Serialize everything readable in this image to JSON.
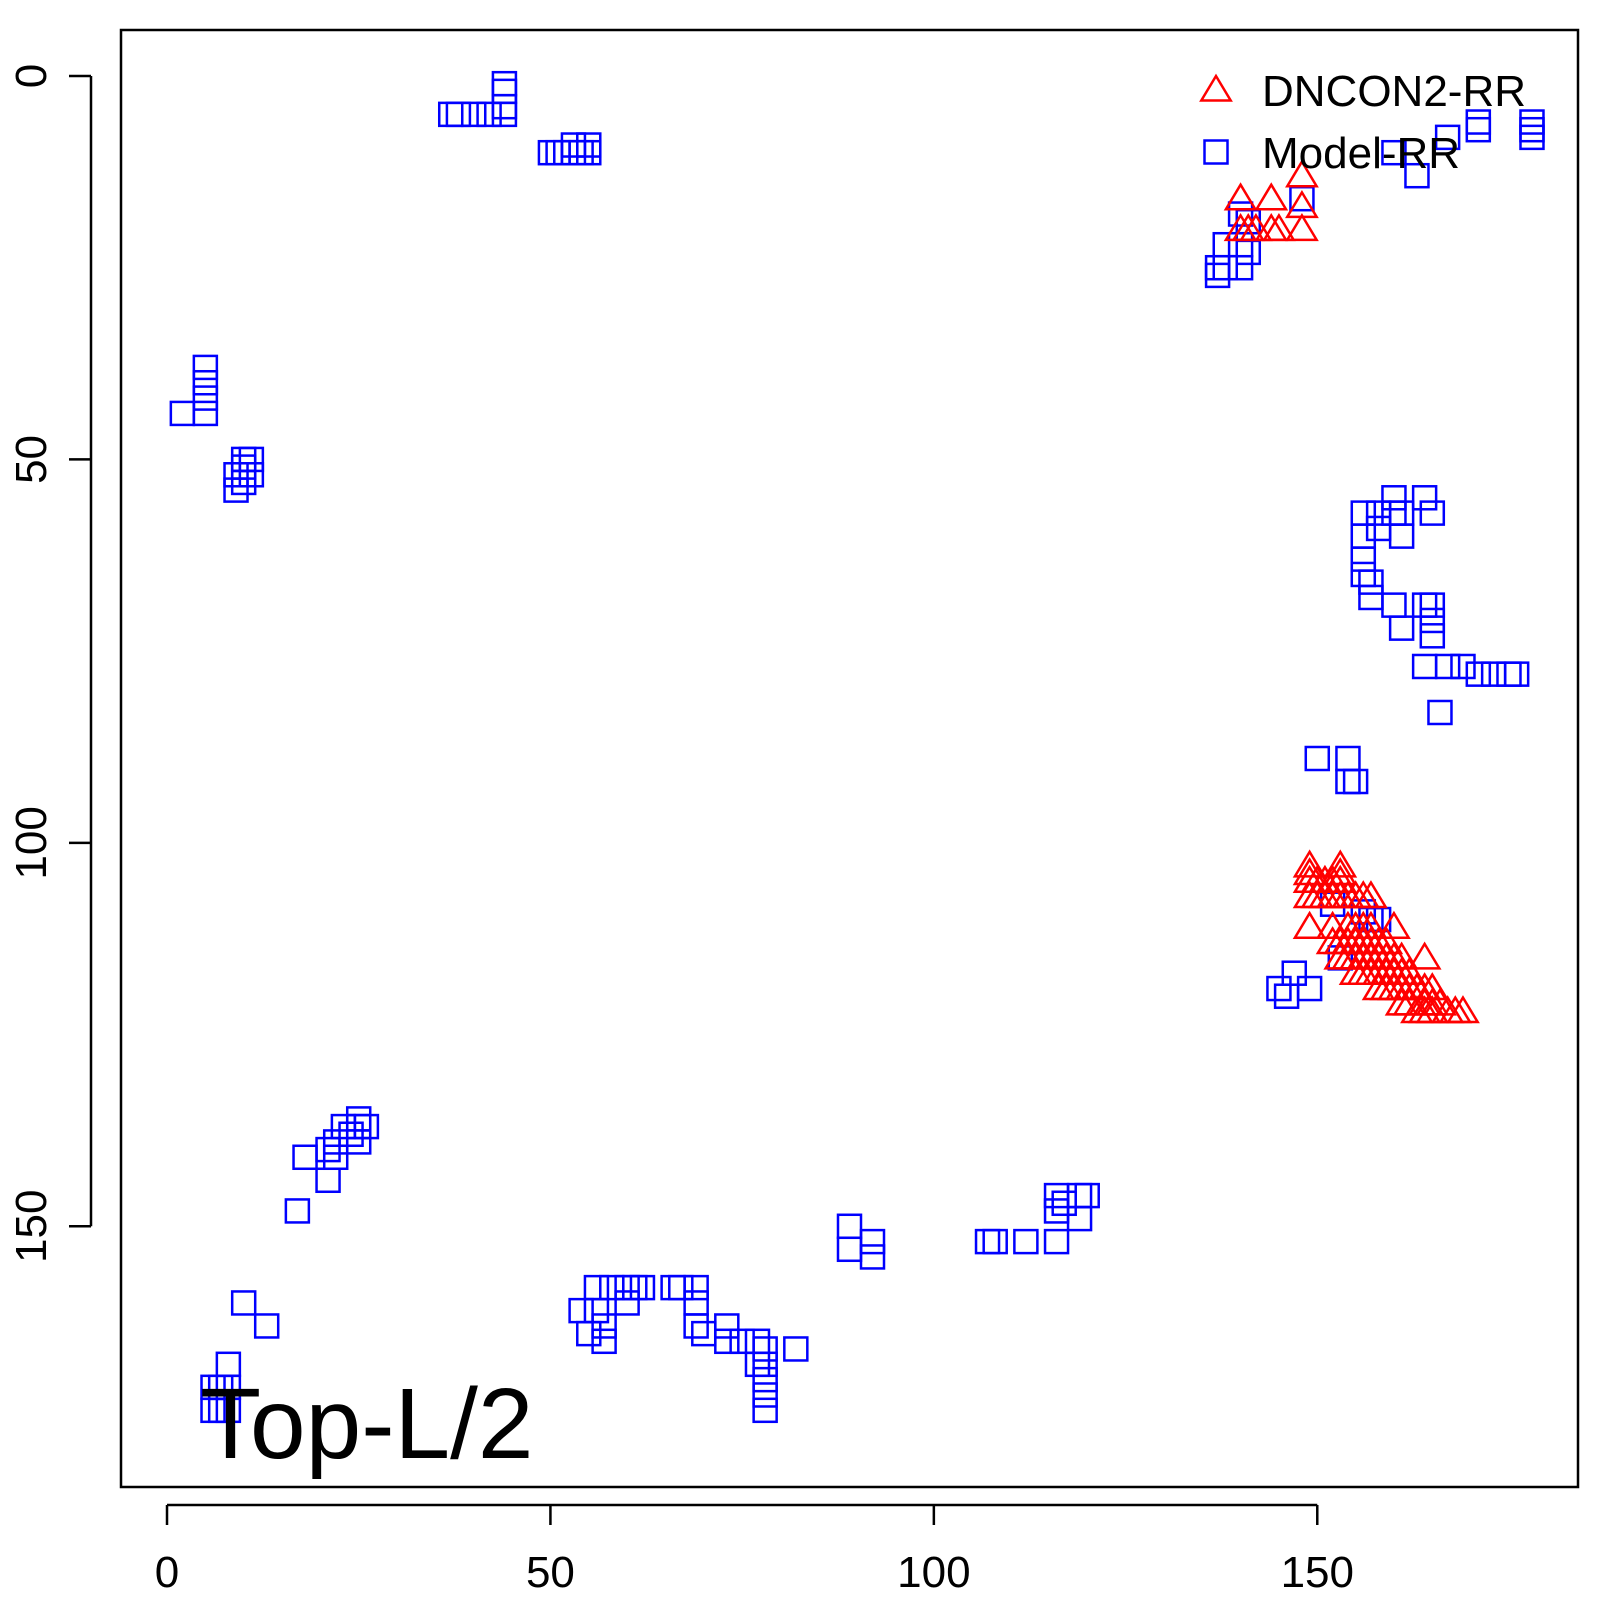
{
  "chart_data": {
    "type": "scatter",
    "title": "",
    "xlabel": "",
    "ylabel": "",
    "xlim": [
      -6,
      184
    ],
    "ylim": [
      -6,
      184
    ],
    "y_reversed": true,
    "x_ticks": [
      0,
      50,
      100,
      150
    ],
    "y_ticks": [
      0,
      50,
      100,
      150
    ],
    "grid": false,
    "legend_position": "top-right",
    "annotation": "Top-L/2",
    "series": [
      {
        "name": "DNCON2-RR",
        "marker": "triangle",
        "color": "#ff0000",
        "points": [
          [
            140,
            16
          ],
          [
            140,
            20
          ],
          [
            141,
            20
          ],
          [
            142,
            20
          ],
          [
            144,
            16
          ],
          [
            144,
            20
          ],
          [
            145,
            20
          ],
          [
            148,
            13
          ],
          [
            148,
            17
          ],
          [
            148,
            20
          ],
          [
            149,
            103
          ],
          [
            149,
            104
          ],
          [
            149,
            105
          ],
          [
            150,
            105
          ],
          [
            151,
            105
          ],
          [
            152,
            105
          ],
          [
            153,
            103
          ],
          [
            153,
            104
          ],
          [
            153,
            105
          ],
          [
            149,
            107
          ],
          [
            150,
            107
          ],
          [
            151,
            107
          ],
          [
            152,
            107
          ],
          [
            153,
            107
          ],
          [
            154,
            107
          ],
          [
            155,
            107
          ],
          [
            156,
            107
          ],
          [
            157,
            107
          ],
          [
            149,
            111
          ],
          [
            152,
            111
          ],
          [
            152,
            113
          ],
          [
            153,
            113
          ],
          [
            154,
            111
          ],
          [
            154,
            113
          ],
          [
            155,
            111
          ],
          [
            155,
            113
          ],
          [
            156,
            111
          ],
          [
            156,
            113
          ],
          [
            157,
            111
          ],
          [
            157,
            113
          ],
          [
            158,
            113
          ],
          [
            159,
            113
          ],
          [
            160,
            111
          ],
          [
            153,
            115
          ],
          [
            154,
            115
          ],
          [
            155,
            115
          ],
          [
            156,
            115
          ],
          [
            157,
            115
          ],
          [
            158,
            115
          ],
          [
            159,
            115
          ],
          [
            160,
            115
          ],
          [
            161,
            115
          ],
          [
            155,
            117
          ],
          [
            156,
            117
          ],
          [
            157,
            117
          ],
          [
            158,
            117
          ],
          [
            159,
            117
          ],
          [
            160,
            117
          ],
          [
            161,
            117
          ],
          [
            162,
            117
          ],
          [
            164,
            115
          ],
          [
            158,
            119
          ],
          [
            159,
            119
          ],
          [
            160,
            119
          ],
          [
            161,
            119
          ],
          [
            162,
            119
          ],
          [
            163,
            119
          ],
          [
            164,
            119
          ],
          [
            165,
            119
          ],
          [
            161,
            121
          ],
          [
            162,
            121
          ],
          [
            164,
            121
          ],
          [
            165,
            121
          ],
          [
            166,
            121
          ],
          [
            163,
            122
          ],
          [
            164,
            122
          ],
          [
            165,
            122
          ],
          [
            167,
            122
          ],
          [
            168,
            122
          ],
          [
            169,
            122
          ]
        ]
      },
      {
        "name": "Model-RR",
        "marker": "square",
        "color": "#0000ff",
        "points": [
          [
            37,
            5
          ],
          [
            38,
            5
          ],
          [
            40,
            5
          ],
          [
            42,
            5
          ],
          [
            44,
            5
          ],
          [
            44,
            4
          ],
          [
            44,
            2
          ],
          [
            44,
            1
          ],
          [
            50,
            10
          ],
          [
            51,
            10
          ],
          [
            52,
            10
          ],
          [
            53,
            10
          ],
          [
            53,
            9
          ],
          [
            54,
            10
          ],
          [
            55,
            10
          ],
          [
            55,
            9
          ],
          [
            2,
            44
          ],
          [
            5,
            44
          ],
          [
            5,
            42
          ],
          [
            5,
            40
          ],
          [
            5,
            38
          ],
          [
            9,
            54
          ],
          [
            9,
            52
          ],
          [
            10,
            53
          ],
          [
            10,
            51
          ],
          [
            10,
            50
          ],
          [
            11,
            50
          ],
          [
            11,
            52
          ],
          [
            138,
            25
          ],
          [
            138,
            22
          ],
          [
            140,
            25
          ],
          [
            140,
            22
          ],
          [
            141,
            23
          ],
          [
            141,
            19
          ],
          [
            140,
            18
          ],
          [
            148,
            16
          ],
          [
            137,
            25
          ],
          [
            137,
            26
          ],
          [
            160,
            10
          ],
          [
            163,
            13
          ],
          [
            167,
            8
          ],
          [
            171,
            7
          ],
          [
            171,
            6
          ],
          [
            178,
            7
          ],
          [
            178,
            6
          ],
          [
            178,
            8
          ],
          [
            156,
            57
          ],
          [
            156,
            60
          ],
          [
            156,
            63
          ],
          [
            156,
            65
          ],
          [
            157,
            66
          ],
          [
            157,
            68
          ],
          [
            158,
            59
          ],
          [
            158,
            57
          ],
          [
            160,
            55
          ],
          [
            160,
            57
          ],
          [
            161,
            57
          ],
          [
            161,
            60
          ],
          [
            164,
            55
          ],
          [
            165,
            57
          ],
          [
            160,
            69
          ],
          [
            161,
            72
          ],
          [
            164,
            69
          ],
          [
            165,
            69
          ],
          [
            165,
            71
          ],
          [
            165,
            73
          ],
          [
            164,
            77
          ],
          [
            167,
            77
          ],
          [
            169,
            77
          ],
          [
            171,
            78
          ],
          [
            173,
            78
          ],
          [
            175,
            78
          ],
          [
            176,
            78
          ],
          [
            166,
            83
          ],
          [
            150,
            89
          ],
          [
            154,
            89
          ],
          [
            154,
            92
          ],
          [
            155,
            92
          ],
          [
            145,
            119
          ],
          [
            146,
            120
          ],
          [
            147,
            117
          ],
          [
            149,
            119
          ],
          [
            153,
            115
          ],
          [
            152,
            108
          ],
          [
            156,
            109
          ],
          [
            157,
            110
          ],
          [
            158,
            110
          ],
          [
            17,
            148
          ],
          [
            18,
            141
          ],
          [
            21,
            144
          ],
          [
            21,
            140
          ],
          [
            22,
            139
          ],
          [
            22,
            141
          ],
          [
            23,
            137
          ],
          [
            24,
            138
          ],
          [
            25,
            139
          ],
          [
            25,
            137
          ],
          [
            25,
            136
          ],
          [
            26,
            137
          ],
          [
            6,
            171
          ],
          [
            7,
            171
          ],
          [
            8,
            171
          ],
          [
            8,
            168
          ],
          [
            10,
            160
          ],
          [
            13,
            163
          ],
          [
            6,
            174
          ],
          [
            7,
            174
          ],
          [
            8,
            174
          ],
          [
            54,
            161
          ],
          [
            55,
            164
          ],
          [
            56,
            158
          ],
          [
            56,
            161
          ],
          [
            57,
            163
          ],
          [
            57,
            165
          ],
          [
            58,
            158
          ],
          [
            60,
            158
          ],
          [
            60,
            160
          ],
          [
            61,
            158
          ],
          [
            62,
            158
          ],
          [
            66,
            158
          ],
          [
            67,
            158
          ],
          [
            69,
            158
          ],
          [
            69,
            160
          ],
          [
            69,
            163
          ],
          [
            70,
            164
          ],
          [
            73,
            163
          ],
          [
            73,
            165
          ],
          [
            75,
            165
          ],
          [
            77,
            165
          ],
          [
            77,
            168
          ],
          [
            78,
            166
          ],
          [
            78,
            168
          ],
          [
            78,
            170
          ],
          [
            78,
            172
          ],
          [
            78,
            174
          ],
          [
            82,
            166
          ],
          [
            89,
            150
          ],
          [
            89,
            153
          ],
          [
            92,
            152
          ],
          [
            92,
            154
          ],
          [
            107,
            152
          ],
          [
            108,
            152
          ],
          [
            112,
            152
          ],
          [
            116,
            152
          ],
          [
            116,
            148
          ],
          [
            117,
            147
          ],
          [
            119,
            149
          ],
          [
            119,
            146
          ],
          [
            120,
            146
          ],
          [
            116,
            146
          ]
        ]
      }
    ]
  }
}
